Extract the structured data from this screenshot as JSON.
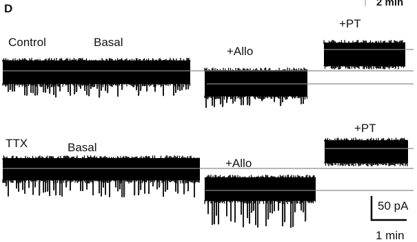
{
  "panel_letter": "D",
  "corner_scale_label": "2 min",
  "traces": {
    "control": {
      "row_label": "Control",
      "basal_label": "Basal",
      "allo_label": "+Allo",
      "pt_label": "+PT"
    },
    "ttx": {
      "row_label": "TTX",
      "basal_label": "Basal",
      "allo_label": "+Allo",
      "pt_label": "+PT"
    }
  },
  "scale_bar": {
    "amplitude_label": "50 pA",
    "time_label": "1 min"
  },
  "colors": {
    "trace": "#000000",
    "baseline": "#8a8a8a",
    "spike_highlight": "#9a9a9a",
    "background": "#ffffff"
  }
}
